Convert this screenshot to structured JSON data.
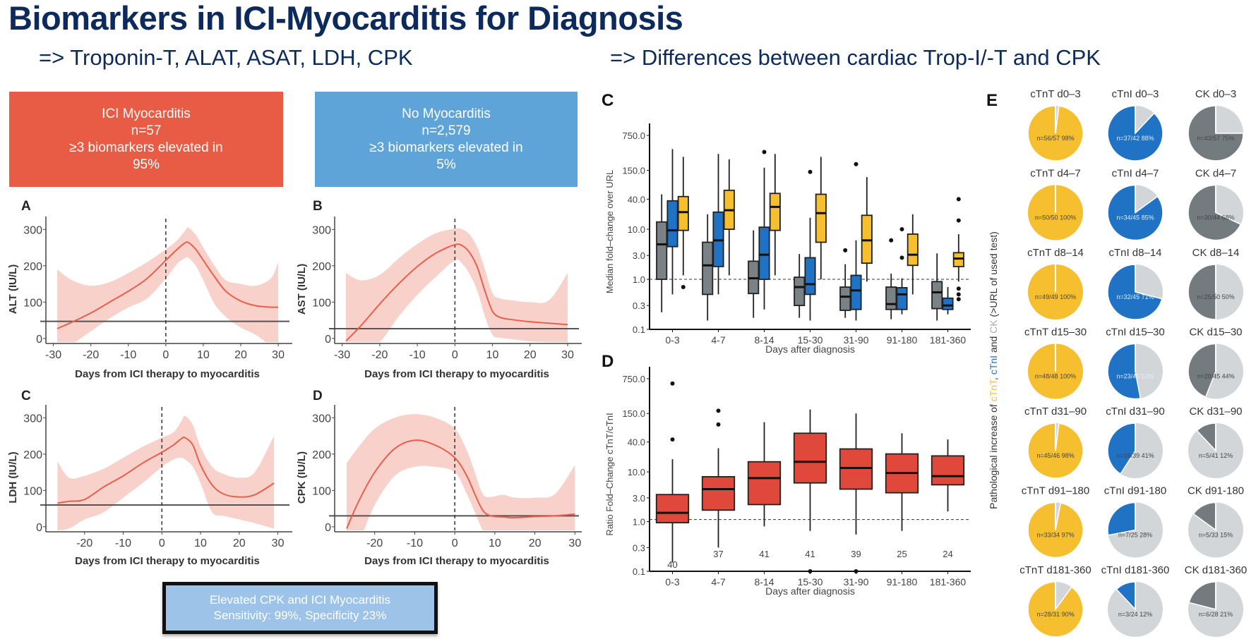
{
  "header": {
    "title": "Biomarkers in ICI-Myocarditis for Diagnosis",
    "subtitle_left": "=> Troponin-T, ALAT, ASAT, LDH, CPK",
    "subtitle_right": "=> Differences between cardiac Trop-I/-T and CPK"
  },
  "boxes": {
    "ici": {
      "line1": "ICI Myocarditis",
      "line2": "n=57",
      "line3": "≥3 biomarkers elevated in",
      "line4": "95%",
      "color": "#e85b45"
    },
    "no": {
      "line1": "No Myocarditis",
      "line2": "n=2,579",
      "line3": "≥3 biomarkers elevated in",
      "line4": "5%",
      "color": "#5ea4d8"
    },
    "cpk": {
      "line1": "Elevated CPK and ICI Myocarditis",
      "line2": "Sensitivity: 99%, Specificity 23%"
    }
  },
  "chart_data": [
    {
      "panel": "A",
      "type": "line",
      "ylabel": "ALT (IU/L)",
      "xlabel": "Days from ICI therapy to myocarditis",
      "xlim": [
        -32,
        33
      ],
      "ylim": [
        -10,
        320
      ],
      "xticks": [
        -30,
        -20,
        -10,
        0,
        10,
        20,
        30
      ],
      "yticks": [
        0,
        100,
        200,
        300
      ],
      "reference_line": 47,
      "vline": 0,
      "x": [
        -29,
        -25,
        -20,
        -15,
        -10,
        -5,
        0,
        3,
        5,
        6,
        8,
        10,
        13,
        16,
        20,
        24,
        28,
        30
      ],
      "y": [
        27,
        45,
        70,
        100,
        130,
        165,
        215,
        245,
        262,
        264,
        245,
        215,
        170,
        130,
        103,
        90,
        86,
        86
      ],
      "ci_low": [
        -30,
        -15,
        20,
        55,
        85,
        110,
        165,
        205,
        220,
        222,
        200,
        160,
        95,
        60,
        30,
        10,
        -20,
        -30
      ],
      "ci_high": [
        190,
        160,
        145,
        155,
        180,
        210,
        245,
        270,
        295,
        305,
        285,
        250,
        200,
        160,
        150,
        145,
        165,
        210
      ]
    },
    {
      "panel": "B",
      "type": "line",
      "ylabel": "AST (IU/L)",
      "xlabel": "Days from ICI therapy to myocarditis",
      "xlim": [
        -32,
        33
      ],
      "ylim": [
        -10,
        320
      ],
      "xticks": [
        -30,
        -20,
        -10,
        0,
        10,
        20,
        30
      ],
      "yticks": [
        0,
        100,
        200,
        300
      ],
      "reference_line": 27,
      "vline": 0,
      "x": [
        -29,
        -25,
        -20,
        -15,
        -10,
        -5,
        0,
        2,
        4,
        6,
        8,
        10,
        12,
        15,
        20,
        25,
        30
      ],
      "y": [
        -7,
        35,
        95,
        150,
        198,
        235,
        258,
        255,
        235,
        195,
        130,
        75,
        58,
        52,
        46,
        42,
        38
      ],
      "ci_low": [
        -60,
        -40,
        -10,
        60,
        120,
        170,
        215,
        205,
        175,
        130,
        60,
        10,
        2,
        -2,
        -8,
        -10,
        -12
      ],
      "ci_high": [
        180,
        160,
        175,
        220,
        260,
        290,
        302,
        300,
        285,
        250,
        190,
        125,
        110,
        105,
        100,
        105,
        180
      ]
    },
    {
      "panel": "C",
      "type": "line",
      "ylabel": "LDH (IU/L)",
      "xlabel": "Days from ICI therapy to myocarditis",
      "xlim": [
        -30,
        33
      ],
      "ylim": [
        -10,
        320
      ],
      "xticks": [
        -20,
        -10,
        0,
        10,
        20,
        30
      ],
      "yticks": [
        0,
        100,
        200,
        300
      ],
      "reference_line": 60,
      "vline": 0,
      "x": [
        -27,
        -24,
        -20,
        -15,
        -10,
        -5,
        0,
        3,
        5,
        6,
        8,
        10,
        13,
        16,
        20,
        24,
        29
      ],
      "y": [
        65,
        70,
        75,
        110,
        140,
        175,
        205,
        225,
        242,
        245,
        225,
        170,
        115,
        90,
        82,
        88,
        120
      ],
      "ci_low": [
        -10,
        -5,
        20,
        40,
        80,
        120,
        165,
        185,
        190,
        185,
        165,
        120,
        40,
        30,
        20,
        10,
        -5
      ],
      "ci_high": [
        180,
        135,
        140,
        160,
        190,
        220,
        245,
        260,
        290,
        305,
        280,
        220,
        165,
        145,
        135,
        150,
        250
      ]
    },
    {
      "panel": "D",
      "type": "line",
      "ylabel": "CPK (IU/L)",
      "xlabel": "Days from ICI therapy to myocarditis",
      "xlim": [
        -30,
        31
      ],
      "ylim": [
        -10,
        320
      ],
      "xticks": [
        -20,
        -10,
        0,
        10,
        20,
        30
      ],
      "yticks": [
        0,
        100,
        200,
        300
      ],
      "reference_line": 30,
      "vline": 0,
      "x": [
        -27,
        -24,
        -20,
        -15,
        -10,
        -5,
        0,
        3,
        5,
        7,
        9,
        12,
        15,
        20,
        25,
        30
      ],
      "y": [
        -5,
        70,
        150,
        215,
        238,
        225,
        190,
        140,
        90,
        45,
        30,
        27,
        25,
        28,
        30,
        35
      ],
      "ci_low": [
        -60,
        -40,
        60,
        140,
        165,
        165,
        150,
        90,
        40,
        -10,
        -30,
        -30,
        -30,
        -30,
        -30,
        -30
      ],
      "ci_high": [
        175,
        220,
        270,
        300,
        310,
        300,
        270,
        210,
        150,
        90,
        82,
        88,
        80,
        80,
        90,
        170
      ]
    },
    {
      "panel": "C",
      "type": "box",
      "scale": "log",
      "ylabel": "Median fold–change over URL",
      "xlabel": "Days after diagnosis",
      "categories": [
        "0-3",
        "4-7",
        "8-14",
        "15-30",
        "31-90",
        "91-180",
        "181-360"
      ],
      "ytick_labels": [
        "0.1",
        "0.3",
        "1.0",
        "3.0",
        "10.0",
        "40.0",
        "150.0",
        "750.0"
      ],
      "yticks": [
        0.1,
        0.3,
        1,
        3,
        10,
        40,
        150,
        750
      ],
      "ylim": [
        0.1,
        800
      ],
      "hline": 1,
      "series": [
        {
          "name": "CK",
          "color": "#7b8285",
          "boxes": [
            {
              "lo": 0.22,
              "q1": 1.0,
              "med": 5,
              "q3": 14,
              "hi": 50,
              "out": []
            },
            {
              "lo": 0.15,
              "q1": 0.5,
              "med": 1.9,
              "q3": 5.5,
              "hi": 20,
              "out": []
            },
            {
              "lo": 0.17,
              "q1": 0.52,
              "med": 1.05,
              "q3": 2.3,
              "hi": 9.5,
              "out": []
            },
            {
              "lo": 0.17,
              "q1": 0.3,
              "med": 0.7,
              "q3": 1.1,
              "hi": 3.2,
              "out": []
            },
            {
              "lo": 0.17,
              "q1": 0.24,
              "med": 0.45,
              "q3": 0.7,
              "hi": 2,
              "out": [
                3.8
              ]
            },
            {
              "lo": 0.16,
              "q1": 0.25,
              "med": 0.32,
              "q3": 0.7,
              "hi": 1.3,
              "out": [
                6
              ]
            },
            {
              "lo": 0.15,
              "q1": 0.26,
              "med": 0.55,
              "q3": 0.9,
              "hi": 3.3,
              "out": []
            }
          ]
        },
        {
          "name": "cTnI",
          "color": "#1f72c4",
          "boxes": [
            {
              "lo": 0.5,
              "q1": 4.5,
              "med": 9.5,
              "q3": 37,
              "hi": 400,
              "out": []
            },
            {
              "lo": 0.5,
              "q1": 1.8,
              "med": 6,
              "q3": 22,
              "hi": 320,
              "out": []
            },
            {
              "lo": 0.25,
              "q1": 1.0,
              "med": 3.1,
              "q3": 11,
              "hi": 170,
              "out": [
                350
              ]
            },
            {
              "lo": 0.15,
              "q1": 0.5,
              "med": 0.8,
              "q3": 2.7,
              "hi": 17,
              "out": [
                140
              ]
            },
            {
              "lo": 0.15,
              "q1": 0.25,
              "med": 0.6,
              "q3": 1.2,
              "hi": 6,
              "out": [
                200
              ]
            },
            {
              "lo": 0.2,
              "q1": 0.25,
              "med": 0.5,
              "q3": 0.68,
              "hi": 1.05,
              "out": [
                10,
                2.7
              ]
            },
            {
              "lo": 0.2,
              "q1": 0.25,
              "med": 0.3,
              "q3": 0.42,
              "hi": 0.7,
              "out": []
            }
          ]
        },
        {
          "name": "cTnT",
          "color": "#f6bf2f",
          "boxes": [
            {
              "lo": 1.2,
              "q1": 9.5,
              "med": 22,
              "q3": 45,
              "hi": 280,
              "out": [
                0.7
              ]
            },
            {
              "lo": 1.2,
              "q1": 10,
              "med": 24,
              "q3": 60,
              "hi": 250,
              "out": []
            },
            {
              "lo": 1.2,
              "q1": 9.5,
              "med": 28,
              "q3": 52,
              "hi": 320,
              "out": []
            },
            {
              "lo": 1.0,
              "q1": 5.5,
              "med": 21,
              "q3": 50,
              "hi": 280,
              "out": []
            },
            {
              "lo": 0.9,
              "q1": 2.1,
              "med": 6,
              "q3": 19,
              "hi": 110,
              "out": []
            },
            {
              "lo": 0.5,
              "q1": 1.9,
              "med": 3.1,
              "q3": 8,
              "hi": 20,
              "out": []
            },
            {
              "lo": 0.9,
              "q1": 1.8,
              "med": 2.6,
              "q3": 3.4,
              "hi": 8,
              "out": [
                0.65,
                0.5,
                0.4,
                15,
                40
              ]
            }
          ]
        }
      ]
    },
    {
      "panel": "D",
      "type": "box",
      "scale": "log",
      "ylabel": "Ratio Fold–Change cTnT/cTnI",
      "xlabel": "Days after diagnosis",
      "categories": [
        "0-3",
        "4-7",
        "8-14",
        "15-30",
        "31-90",
        "91-180",
        "181-360"
      ],
      "ytick_labels": [
        "0.1",
        "0.3",
        "1.0",
        "3.0",
        "10.0",
        "40.0",
        "150.0",
        "750.0"
      ],
      "yticks": [
        0.1,
        0.3,
        1,
        3,
        10,
        40,
        150,
        750
      ],
      "ylim": [
        0.1,
        800
      ],
      "hline": 1.1,
      "counts": [
        "40",
        "37",
        "41",
        "41",
        "39",
        "25",
        "24"
      ],
      "series": [
        {
          "name": "ratio",
          "color": "#e0483c",
          "boxes": [
            {
              "lo": 0.15,
              "q1": 0.95,
              "med": 1.5,
              "q3": 3.5,
              "hi": 18,
              "out": [
                600,
                45
              ]
            },
            {
              "lo": 0.3,
              "q1": 1.7,
              "med": 4.5,
              "q3": 8,
              "hi": 30,
              "out": [
                170,
                90
              ]
            },
            {
              "lo": 0.8,
              "q1": 2.2,
              "med": 7.5,
              "q3": 16,
              "hi": 100,
              "out": []
            },
            {
              "lo": 0.65,
              "q1": 6,
              "med": 16,
              "q3": 60,
              "hi": 180,
              "out": [
                0.1
              ]
            },
            {
              "lo": 0.55,
              "q1": 4.5,
              "med": 12,
              "q3": 29,
              "hi": 150,
              "out": [
                0.1
              ]
            },
            {
              "lo": 0.65,
              "q1": 3.8,
              "med": 9.5,
              "q3": 23,
              "hi": 60,
              "out": []
            },
            {
              "lo": 1.6,
              "q1": 5.5,
              "med": 8.2,
              "q3": 21,
              "hi": 45,
              "out": []
            }
          ]
        }
      ]
    },
    {
      "panel": "E",
      "type": "pie",
      "ylabel_parts": [
        {
          "text": "Pathological increase of ",
          "color": "#333333"
        },
        {
          "text": "cTnT",
          "color": "#f6bf2f"
        },
        {
          "text": ", ",
          "color": "#333333"
        },
        {
          "text": "cTnI",
          "color": "#1f72c4"
        },
        {
          "text": " and ",
          "color": "#333333"
        },
        {
          "text": "CK",
          "color": "#a8adb0"
        },
        {
          "text": " (>URL of used test)",
          "color": "#333333"
        }
      ],
      "rest_color": "#d3d6d8",
      "rows": [
        [
          {
            "title": "cTnT d0–3",
            "label": "n=56/57 98%",
            "pct": 98,
            "color": "#f6bf2f"
          },
          {
            "title": "cTnI d0–3",
            "label": "n=37/42 88%",
            "pct": 88,
            "color": "#1f72c4"
          },
          {
            "title": "CK d0–3",
            "label": "n=43/57 75%",
            "pct": 75,
            "color": "#737b7e"
          }
        ],
        [
          {
            "title": "cTnT d4–7",
            "label": "n=50/50 100%",
            "pct": 100,
            "color": "#f6bf2f"
          },
          {
            "title": "cTnI d4–7",
            "label": "n=34/45 85%",
            "pct": 85,
            "color": "#1f72c4"
          },
          {
            "title": "CK d4–7",
            "label": "n=30/44 68%",
            "pct": 68,
            "color": "#737b7e"
          }
        ],
        [
          {
            "title": "cTnT d8–14",
            "label": "n=49/49 100%",
            "pct": 100,
            "color": "#f6bf2f"
          },
          {
            "title": "cTnI d8–14",
            "label": "n=32/45 71%",
            "pct": 71,
            "color": "#1f72c4"
          },
          {
            "title": "CK d8–14",
            "label": "n=25/50 50%",
            "pct": 50,
            "color": "#737b7e"
          }
        ],
        [
          {
            "title": "cTnT d15–30",
            "label": "n=48/48 100%",
            "pct": 100,
            "color": "#f6bf2f"
          },
          {
            "title": "cTnI d15–30",
            "label": "n=23/43 53%",
            "pct": 53,
            "color": "#1f72c4"
          },
          {
            "title": "CK d15–30",
            "label": "n=20/45 44%",
            "pct": 44,
            "color": "#737b7e"
          }
        ],
        [
          {
            "title": "cTnT d31–90",
            "label": "n=45/46 98%",
            "pct": 98,
            "color": "#f6bf2f"
          },
          {
            "title": "cTnI d31–90",
            "label": "n=16/39 41%",
            "pct": 41,
            "color": "#1f72c4"
          },
          {
            "title": "CK d31–90",
            "label": "n=5/41 12%",
            "pct": 12,
            "color": "#737b7e"
          }
        ],
        [
          {
            "title": "cTnT d91–180",
            "label": "n=33/34 97%",
            "pct": 97,
            "color": "#f6bf2f"
          },
          {
            "title": "cTnI d91-180",
            "label": "n=7/25 28%",
            "pct": 28,
            "color": "#1f72c4"
          },
          {
            "title": "CK d91-180",
            "label": "n=5/33 15%",
            "pct": 15,
            "color": "#737b7e"
          }
        ],
        [
          {
            "title": "cTnT d181-360",
            "label": "n=28/31 90%",
            "pct": 90,
            "color": "#f6bf2f"
          },
          {
            "title": "cTnI d181-360",
            "label": "n=3/24 12%",
            "pct": 12,
            "color": "#1f72c4"
          },
          {
            "title": "CK d181-360",
            "label": "n=6/28 21%",
            "pct": 21,
            "color": "#737b7e"
          }
        ]
      ]
    }
  ]
}
